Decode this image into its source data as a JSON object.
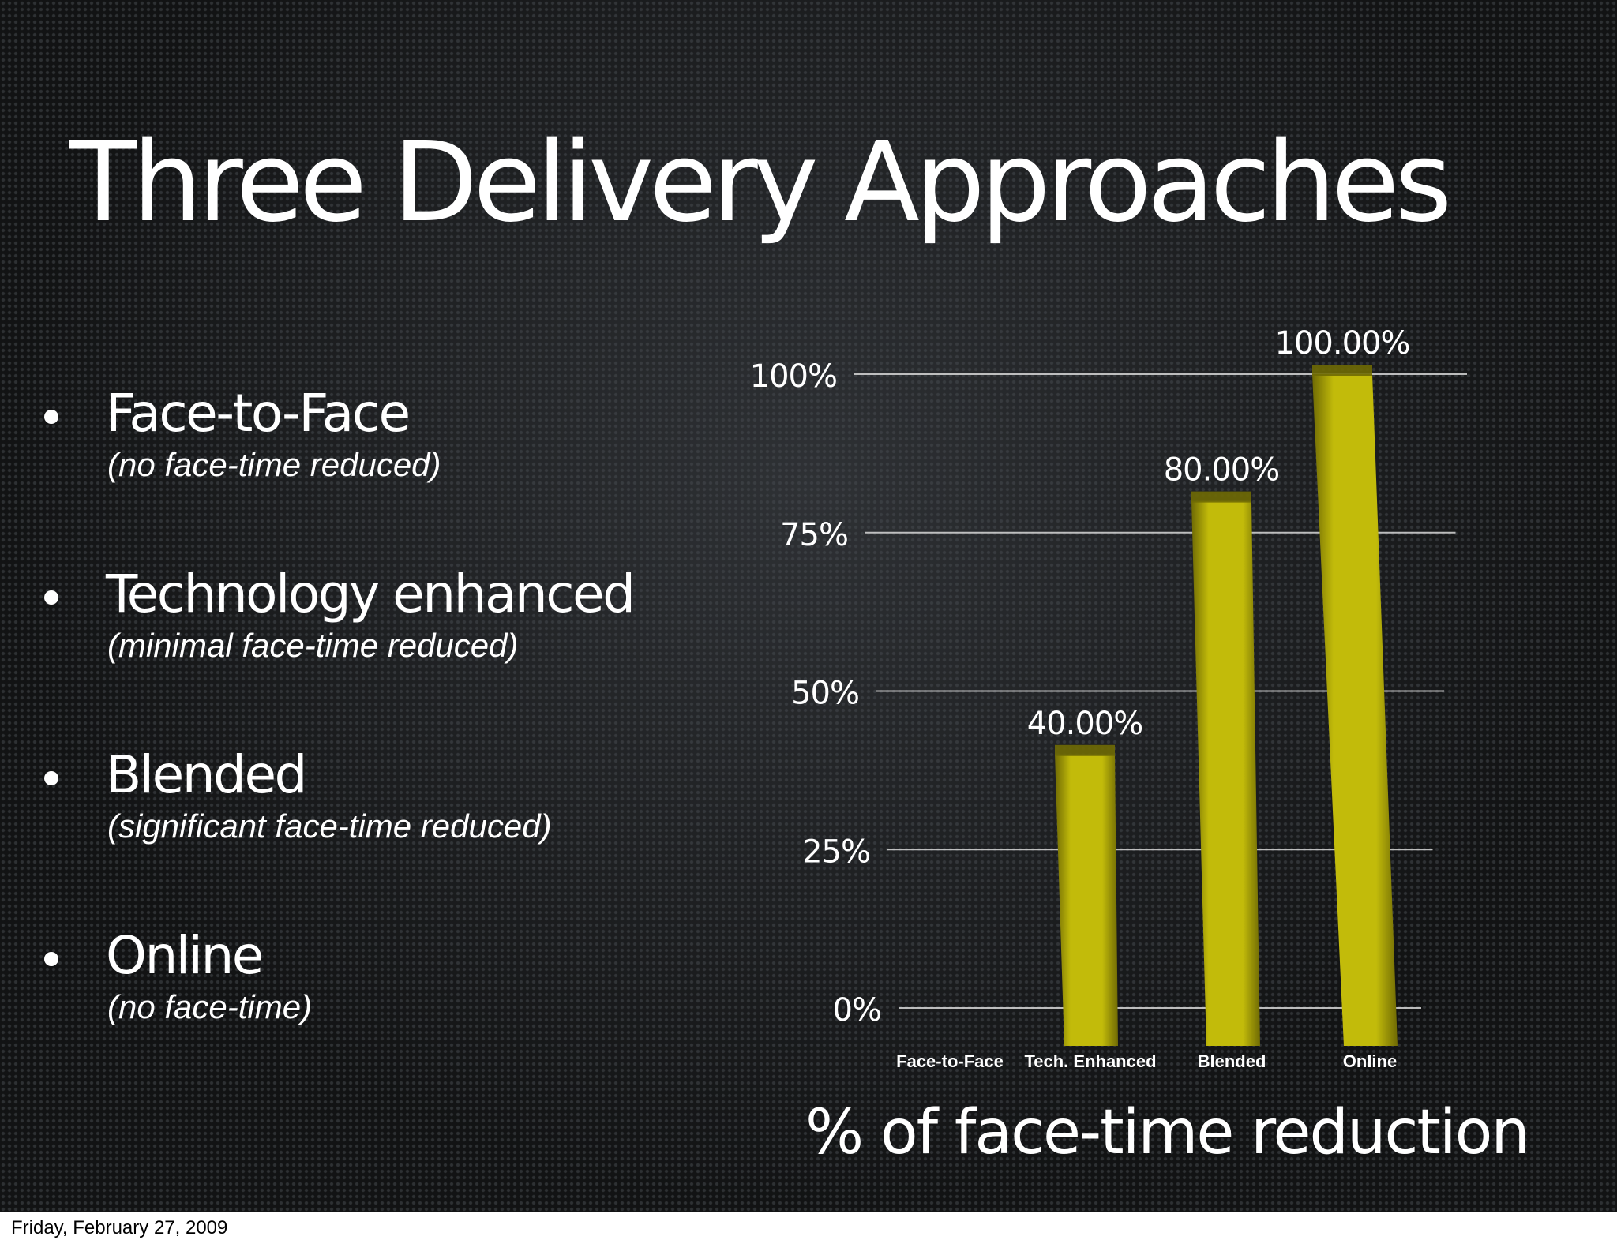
{
  "slide": {
    "title": "Three Delivery Approaches",
    "bullets": [
      {
        "label": "Face-to-Face",
        "note": "(no face-time reduced)"
      },
      {
        "label": "Technology enhanced",
        "note": "(minimal face-time reduced)"
      },
      {
        "label": "Blended",
        "note": "(significant face-time reduced)"
      },
      {
        "label": "Online",
        "note": "(no face-time)"
      }
    ],
    "chart_caption": "% of face-time reduction"
  },
  "footer": {
    "date": "Friday, February 27, 2009"
  },
  "colors": {
    "bar": "#c2bb0a",
    "bar_dark": "#6f6a04",
    "gridline": "#d8d8d8",
    "text": "#ffffff"
  },
  "chart_data": {
    "type": "bar",
    "title": "",
    "xlabel": "",
    "ylabel": "",
    "categories": [
      "Face-to-Face",
      "Tech. Enhanced",
      "Blended",
      "Online"
    ],
    "values": [
      0,
      40,
      80,
      100
    ],
    "value_labels": [
      "",
      "40.00%",
      "80.00%",
      "100.00%"
    ],
    "y_ticks": [
      0,
      25,
      50,
      75,
      100
    ],
    "y_tick_labels": [
      "0%",
      "25%",
      "50%",
      "75%",
      "100%"
    ],
    "ylim": [
      0,
      100
    ],
    "grid": true,
    "legend": "none",
    "style": "3d-perspective"
  }
}
